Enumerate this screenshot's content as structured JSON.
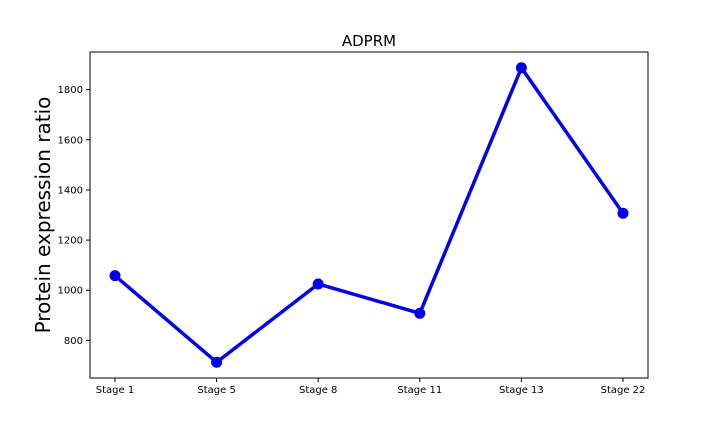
{
  "chart_data": {
    "type": "line",
    "title": "ADPRM",
    "xlabel": "",
    "ylabel": "Protein expression ratio",
    "categories": [
      "Stage 1",
      "Stage 5",
      "Stage 8",
      "Stage 11",
      "Stage 13",
      "Stage 22"
    ],
    "series": [
      {
        "values": [
          1058,
          713,
          1025,
          908,
          1887,
          1307
        ],
        "color": "#0000ee"
      }
    ],
    "ylim": [
      650,
      1950
    ],
    "yticks": [
      800,
      1000,
      1200,
      1400,
      1600,
      1800
    ],
    "grid": false,
    "legend": "none"
  }
}
